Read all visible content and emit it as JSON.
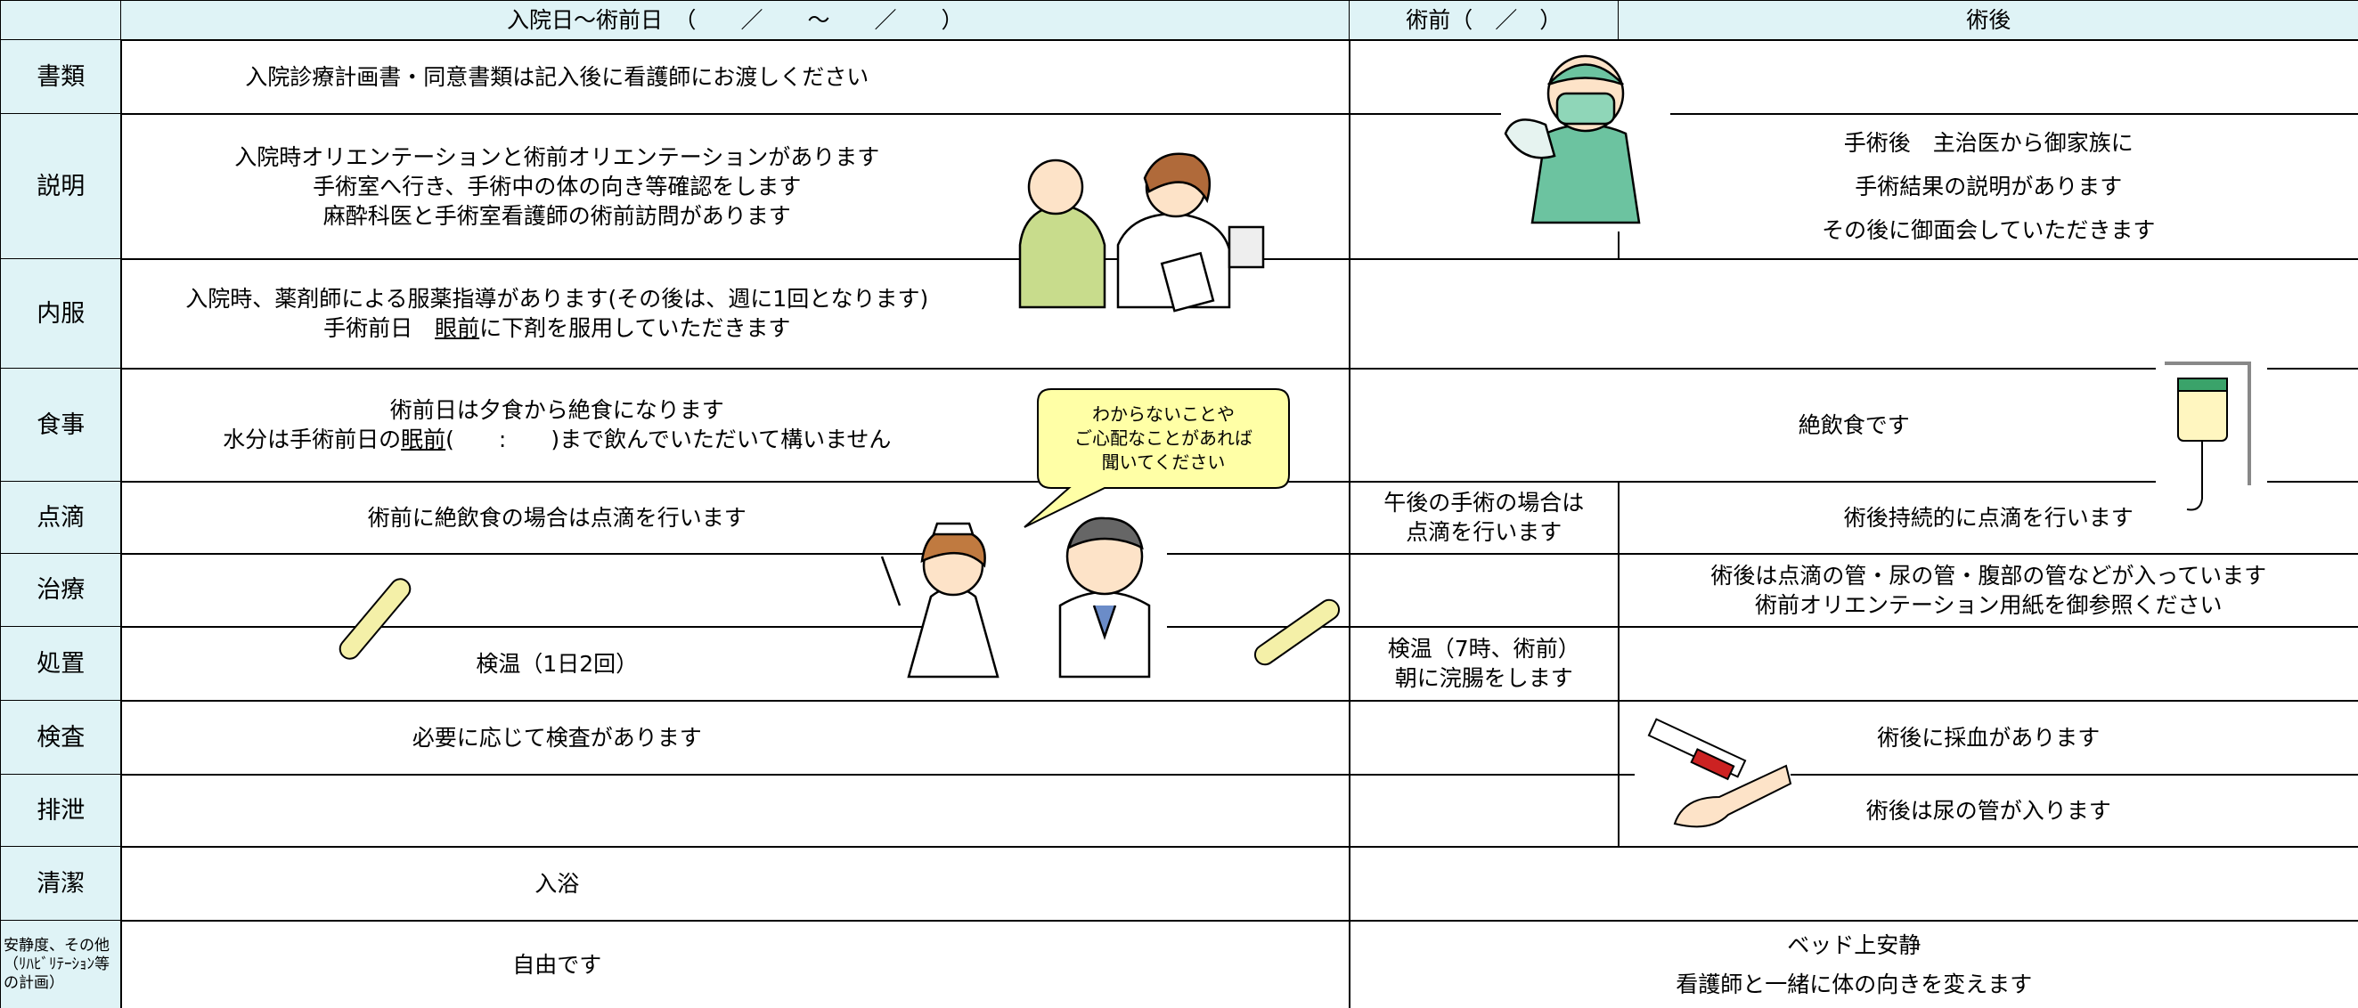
{
  "header": {
    "cells": [
      "入院日～術前日　（　　／　　～　　／　　）",
      "術前（　／　）",
      "術後"
    ]
  },
  "rows": [
    {
      "label": "書類",
      "cells": [
        [
          "入院診療計画書・同意書類は記入後に看護師にお渡しください"
        ],
        []
      ]
    },
    {
      "label": "説明",
      "cells": [
        [
          "入院時オリエンテーションと術前オリエンテーションがあります",
          "手術室へ行き、手術中の体の向き等確認をします",
          "麻酔科医と手術室看護師の術前訪問があります"
        ],
        [],
        [
          "手術後　主治医から御家族に",
          "手術結果の説明があります",
          "その後に御面会していただきます"
        ]
      ]
    },
    {
      "label": "内服",
      "cells": [
        [
          "入院時、薬剤師による服薬指導があります(その後は、週に1回となります)",
          [
            {
              "text": "手術前日　"
            },
            {
              "text": "眼前",
              "underline": true
            },
            {
              "text": "に下剤を服用していただきます"
            }
          ]
        ],
        []
      ]
    },
    {
      "label": "食事",
      "cells": [
        [
          "術前日は夕食から絶食になります",
          [
            {
              "text": "水分は手術前日の"
            },
            {
              "text": "眠前",
              "underline": true
            },
            {
              "text": "(　　:　　)まで飲んでいただいて構いません"
            }
          ]
        ],
        [
          "絶飲食です"
        ]
      ]
    },
    {
      "label": "点滴",
      "cells": [
        [
          "術前に絶飲食の場合は点滴を行います"
        ],
        [
          "午後の手術の場合は",
          "点滴を行います"
        ],
        [
          "術後持続的に点滴を行います"
        ]
      ]
    },
    {
      "label": "治療",
      "cells": [
        [],
        [],
        [
          "術後は点滴の管・尿の管・腹部の管などが入っています",
          "術前オリエンテーション用紙を御参照ください"
        ]
      ]
    },
    {
      "label": "処置",
      "cells": [
        [
          "検温（1日2回）"
        ],
        [
          "検温（7時、術前）",
          "朝に浣腸をします"
        ],
        []
      ]
    },
    {
      "label": "検査",
      "cells": [
        [
          "必要に応じて検査があります"
        ],
        [],
        [
          "術後に採血があります"
        ]
      ]
    },
    {
      "label": "排泄",
      "cells": [
        [],
        [],
        [
          "術後は尿の管が入ります"
        ]
      ]
    },
    {
      "label": "清潔",
      "cells": [
        [
          "入浴"
        ],
        []
      ]
    },
    {
      "label": "安静度、その他（ﾘﾊﾋﾞﾘﾃｰｼｮﾝ等の計画）",
      "cells": [
        [
          "自由です"
        ],
        [
          "ベッド上安静",
          "看護師と一緒に体の向きを変えます"
        ]
      ]
    }
  ],
  "bubble": {
    "lines": [
      "わからないことや",
      "ご心配なことがあれば",
      "聞いてください"
    ]
  }
}
